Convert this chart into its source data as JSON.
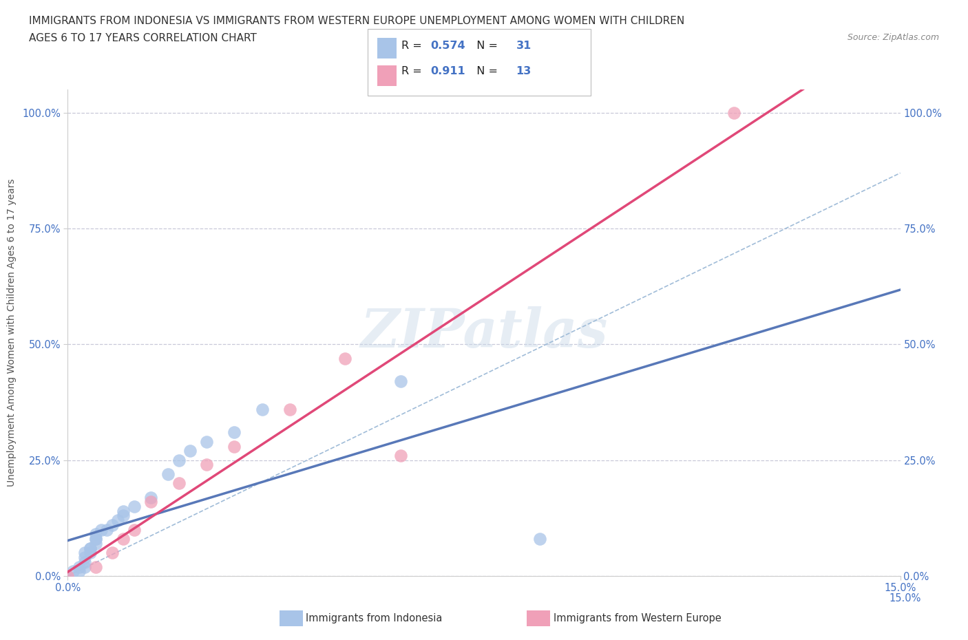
{
  "title_line1": "IMMIGRANTS FROM INDONESIA VS IMMIGRANTS FROM WESTERN EUROPE UNEMPLOYMENT AMONG WOMEN WITH CHILDREN",
  "title_line2": "AGES 6 TO 17 YEARS CORRELATION CHART",
  "source": "Source: ZipAtlas.com",
  "ylabel": "Unemployment Among Women with Children Ages 6 to 17 years",
  "xlim": [
    0.0,
    0.15
  ],
  "ylim": [
    0.0,
    1.05
  ],
  "grid_color": "#c8c8d8",
  "background_color": "#ffffff",
  "watermark": "ZIPatlas",
  "legend_R1": "0.574",
  "legend_N1": "31",
  "legend_R2": "0.911",
  "legend_N2": "13",
  "color_indonesia": "#a8c4e8",
  "color_western_europe": "#f0a0b8",
  "line_color_indonesia": "#5878b8",
  "line_color_western_europe": "#e04878",
  "line_color_diagonal": "#a0bcd8",
  "label_indonesia": "Immigrants from Indonesia",
  "label_western_europe": "Immigrants from Western Europe",
  "tick_color": "#4472c4",
  "indo_x": [
    0.0,
    0.001,
    0.002,
    0.002,
    0.003,
    0.003,
    0.003,
    0.003,
    0.004,
    0.004,
    0.004,
    0.005,
    0.005,
    0.005,
    0.005,
    0.006,
    0.007,
    0.008,
    0.009,
    0.01,
    0.01,
    0.012,
    0.015,
    0.018,
    0.02,
    0.022,
    0.025,
    0.03,
    0.035,
    0.06,
    0.085
  ],
  "indo_y": [
    0.0,
    0.01,
    0.01,
    0.02,
    0.02,
    0.03,
    0.04,
    0.05,
    0.05,
    0.06,
    0.06,
    0.07,
    0.08,
    0.08,
    0.09,
    0.1,
    0.1,
    0.11,
    0.12,
    0.13,
    0.14,
    0.15,
    0.17,
    0.22,
    0.25,
    0.27,
    0.29,
    0.31,
    0.36,
    0.42,
    0.08
  ],
  "we_x": [
    0.0,
    0.005,
    0.008,
    0.01,
    0.012,
    0.015,
    0.02,
    0.025,
    0.03,
    0.04,
    0.05,
    0.06,
    0.12
  ],
  "we_y": [
    0.0,
    0.02,
    0.05,
    0.08,
    0.1,
    0.16,
    0.2,
    0.24,
    0.28,
    0.36,
    0.47,
    0.26,
    1.0
  ]
}
